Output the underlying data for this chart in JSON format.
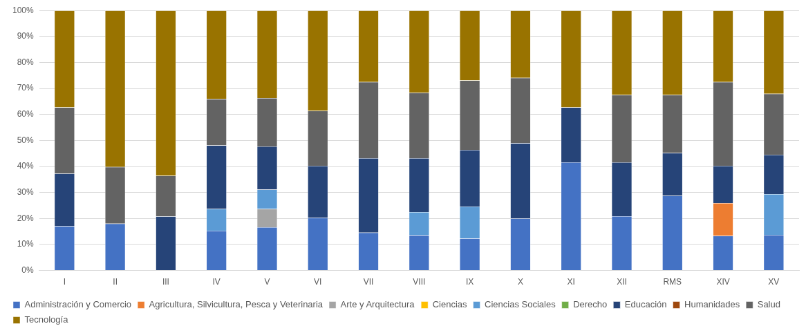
{
  "chart_data": {
    "type": "bar",
    "stacked": true,
    "legend": "bottom",
    "grid": "y",
    "categories": [
      "I",
      "II",
      "III",
      "IV",
      "V",
      "VI",
      "VII",
      "VIII",
      "IX",
      "X",
      "XI",
      "XII",
      "RMS",
      "XIV",
      "XV"
    ],
    "ylim": [
      0,
      100
    ],
    "yticks": [
      {
        "value": 0,
        "label": "0%"
      },
      {
        "value": 10,
        "label": "10%"
      },
      {
        "value": 20,
        "label": "20%"
      },
      {
        "value": 30,
        "label": "30%"
      },
      {
        "value": 40,
        "label": "40%"
      },
      {
        "value": 50,
        "label": "50%"
      },
      {
        "value": 60,
        "label": "60%"
      },
      {
        "value": 70,
        "label": "70%"
      },
      {
        "value": 80,
        "label": "80%"
      },
      {
        "value": 90,
        "label": "90%"
      },
      {
        "value": 100,
        "label": "100%"
      }
    ],
    "series": [
      {
        "name": "Administración y Comercio",
        "color": "#4472c4",
        "values": [
          17.0,
          18.0,
          0,
          15.3,
          16.6,
          20.3,
          14.6,
          13.6,
          12.3,
          20.0,
          41.6,
          20.9,
          28.7,
          13.3,
          13.7
        ]
      },
      {
        "name": "Agricultura, Silvicultura, Pesca y Veterinaria",
        "color": "#ed7d31",
        "values": [
          0,
          0,
          0,
          0,
          0,
          0,
          0,
          0,
          0,
          0,
          0,
          0,
          0,
          12.6,
          0
        ]
      },
      {
        "name": "Arte y Arquitectura",
        "color": "#a5a5a5",
        "values": [
          0,
          0,
          0,
          0,
          7.1,
          0,
          0,
          0,
          0,
          0,
          0,
          0,
          0,
          0,
          0
        ]
      },
      {
        "name": "Ciencias",
        "color": "#ffc000",
        "values": [
          0,
          0,
          0,
          0,
          0,
          0,
          0,
          0,
          0,
          0,
          0,
          0,
          0,
          0,
          0
        ]
      },
      {
        "name": "Ciencias Sociales",
        "color": "#5b9bd5",
        "values": [
          0,
          0,
          0,
          8.4,
          7.4,
          0,
          0,
          8.9,
          12.3,
          0,
          0,
          0,
          0,
          0,
          15.7
        ]
      },
      {
        "name": "Derecho",
        "color": "#70ad47",
        "values": [
          0,
          0,
          0,
          0,
          0,
          0,
          0,
          0,
          0,
          0,
          0,
          0,
          0,
          0,
          0
        ]
      },
      {
        "name": "Educación",
        "color": "#264478",
        "values": [
          20.3,
          0,
          20.8,
          24.4,
          16.6,
          20.0,
          28.6,
          20.7,
          21.8,
          29.0,
          21.1,
          20.7,
          16.5,
          14.4,
          15.1
        ]
      },
      {
        "name": "Humanidades",
        "color": "#9e480e",
        "values": [
          0,
          0,
          0,
          0,
          0,
          0,
          0,
          0,
          0,
          0,
          0,
          0,
          0,
          0,
          0
        ]
      },
      {
        "name": "Salud",
        "color": "#636363",
        "values": [
          25.4,
          21.8,
          15.6,
          17.9,
          18.6,
          21.1,
          29.3,
          25.2,
          26.7,
          25.1,
          0,
          25.9,
          22.3,
          32.2,
          23.5
        ]
      },
      {
        "name": "Tecnología",
        "color": "#997300",
        "values": [
          37.3,
          60.2,
          63.6,
          34.0,
          33.7,
          38.6,
          27.5,
          31.6,
          26.9,
          25.9,
          37.3,
          32.5,
          32.5,
          27.5,
          32.0
        ]
      }
    ]
  }
}
